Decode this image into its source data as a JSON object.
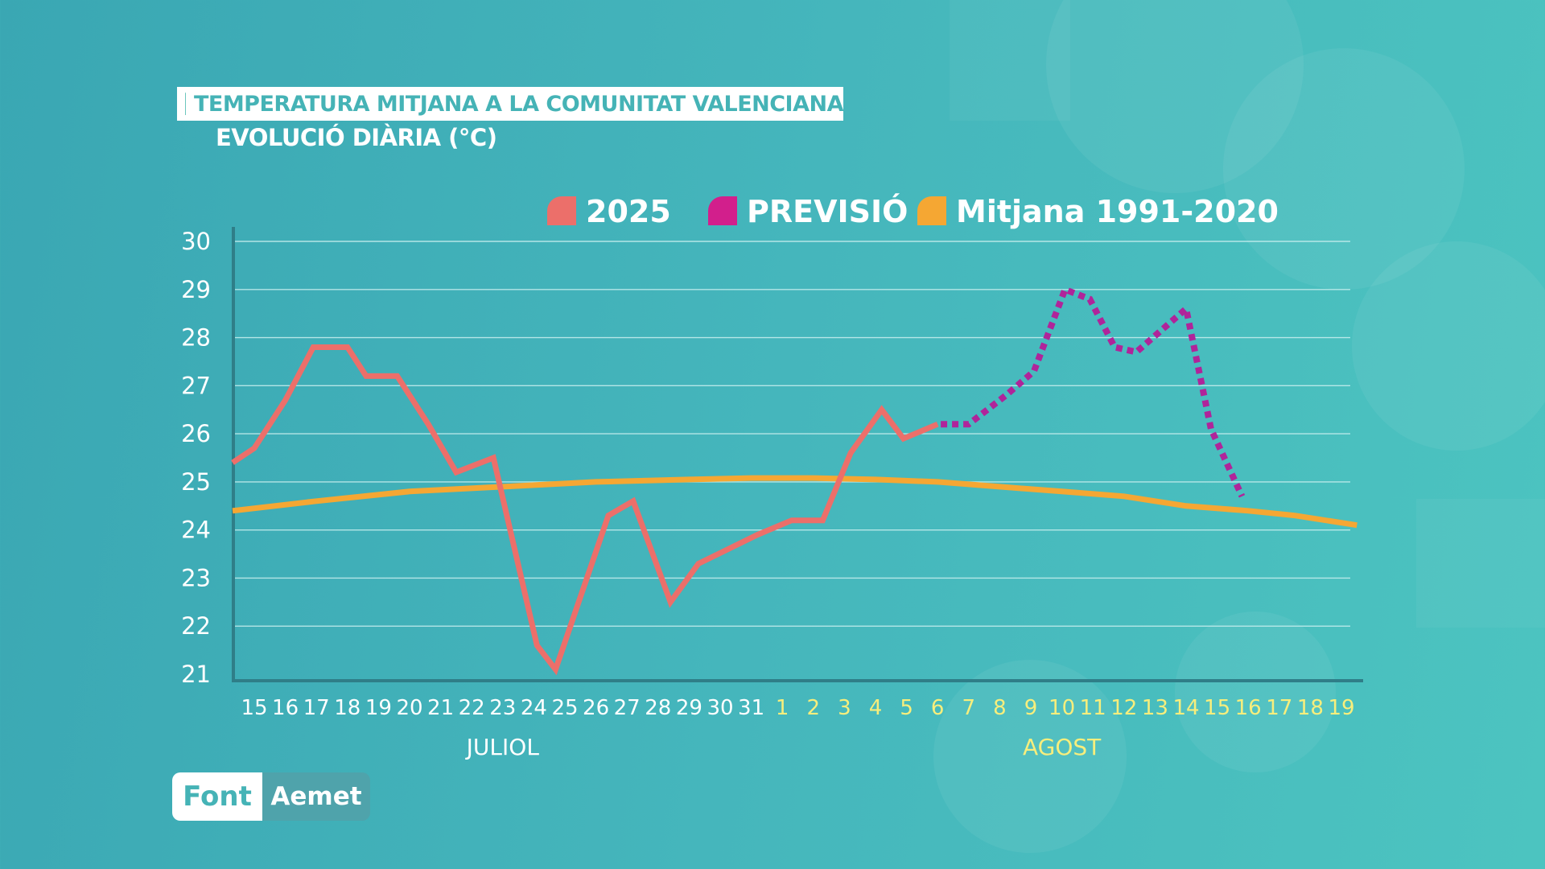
{
  "header": {
    "title": "TEMPERATURA MITJANA A LA COMUNITAT VALENCIANA",
    "subtitle": "EVOLUCIÓ DIÀRIA (°C)"
  },
  "source": {
    "label": "Font",
    "value": "Aemet"
  },
  "colors": {
    "actual": "#ec6f6a",
    "forecast": "#b0249a",
    "forecast_legend": "#d21f8c",
    "average": "#f5a733",
    "month_july": "#ffffff",
    "month_august": "#f7ee7c",
    "grid": "#c9eeee",
    "axis": "#2f7e88"
  },
  "chart_data": {
    "type": "line",
    "title": "TEMPERATURA MITJANA A LA COMUNITAT VALENCIANA",
    "subtitle": "EVOLUCIÓ DIÀRIA (°C)",
    "ylabel": "°C",
    "ylim": [
      21,
      30
    ],
    "yticks": [
      "21",
      "22",
      "23",
      "24",
      "25",
      "26",
      "27",
      "28",
      "29",
      "30"
    ],
    "grid": true,
    "legend_position": "top-right",
    "legend": [
      {
        "key": "actual",
        "label": "2025"
      },
      {
        "key": "forecast",
        "label": "PREVISIÓ"
      },
      {
        "key": "average",
        "label": "Mitjana 1991-2020"
      }
    ],
    "x_labels": [
      "15",
      "16",
      "17",
      "18",
      "19",
      "20",
      "21",
      "22",
      "23",
      "24",
      "25",
      "26",
      "27",
      "28",
      "29",
      "30",
      "31",
      "1",
      "2",
      "3",
      "4",
      "5",
      "6",
      "7",
      "8",
      "9",
      "10",
      "11",
      "12",
      "13",
      "14",
      "15",
      "16",
      "17",
      "18",
      "19"
    ],
    "months": [
      {
        "label": "JULIOL",
        "start": 0,
        "end": 16,
        "color_key": "month_july"
      },
      {
        "label": "AGOST",
        "start": 17,
        "end": 35,
        "color_key": "month_august"
      }
    ],
    "series": [
      {
        "name": "2025",
        "style": "solid",
        "color_key": "actual",
        "points": [
          [
            -0.7,
            25.4
          ],
          [
            0,
            25.7
          ],
          [
            1,
            26.7
          ],
          [
            1.9,
            27.8
          ],
          [
            3,
            27.8
          ],
          [
            3.6,
            27.2
          ],
          [
            4.6,
            27.2
          ],
          [
            5.6,
            26.2
          ],
          [
            6.5,
            25.2
          ],
          [
            7.7,
            25.5
          ],
          [
            9.1,
            21.6
          ],
          [
            9.7,
            21.1
          ],
          [
            11.4,
            24.3
          ],
          [
            12.2,
            24.6
          ],
          [
            13.4,
            22.5
          ],
          [
            14.3,
            23.3
          ],
          [
            16.2,
            23.9
          ],
          [
            17.3,
            24.2
          ],
          [
            18.3,
            24.2
          ],
          [
            19.2,
            25.6
          ],
          [
            20.2,
            26.5
          ],
          [
            20.9,
            25.9
          ],
          [
            22.0,
            26.2
          ]
        ]
      },
      {
        "name": "PREVISIÓ",
        "style": "dotted",
        "color_key": "forecast",
        "points": [
          [
            22.1,
            26.2
          ],
          [
            23.0,
            26.2
          ],
          [
            24.2,
            26.8
          ],
          [
            25.1,
            27.3
          ],
          [
            26.1,
            29.0
          ],
          [
            26.9,
            28.8
          ],
          [
            27.7,
            27.8
          ],
          [
            28.4,
            27.7
          ],
          [
            30.0,
            28.6
          ],
          [
            30.8,
            26.1
          ],
          [
            31.8,
            24.7
          ]
        ]
      },
      {
        "name": "Mitjana 1991-2020",
        "style": "solid",
        "color_key": "average",
        "points": [
          [
            -0.7,
            24.4
          ],
          [
            2,
            24.6
          ],
          [
            5,
            24.8
          ],
          [
            8,
            24.9
          ],
          [
            11,
            25.0
          ],
          [
            14,
            25.05
          ],
          [
            16,
            25.08
          ],
          [
            18,
            25.08
          ],
          [
            20,
            25.05
          ],
          [
            22,
            25.0
          ],
          [
            24,
            24.9
          ],
          [
            26,
            24.8
          ],
          [
            28,
            24.7
          ],
          [
            30,
            24.5
          ],
          [
            32,
            24.4
          ],
          [
            33.5,
            24.3
          ],
          [
            35.5,
            24.1
          ]
        ]
      }
    ]
  }
}
